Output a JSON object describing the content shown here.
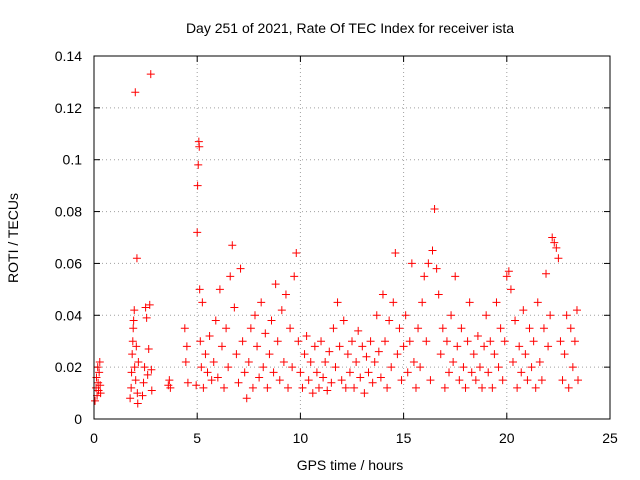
{
  "chart_data": {
    "type": "scatter",
    "title": "Day 251 of 2021, Rate Of TEC Index for receiver ista",
    "xlabel": "GPS time / hours",
    "ylabel": "ROTI / TECUs",
    "xlim": [
      0,
      25
    ],
    "ylim": [
      0,
      0.14
    ],
    "x_ticks": [
      0,
      5,
      10,
      15,
      20,
      25
    ],
    "x_tick_labels": [
      "0",
      "5",
      "10",
      "15",
      "20",
      "25"
    ],
    "y_ticks": [
      0,
      0.02,
      0.04,
      0.06,
      0.08,
      0.1,
      0.12,
      0.14
    ],
    "y_tick_labels": [
      "0",
      "0.02",
      "0.04",
      "0.06",
      "0.08",
      "0.1",
      "0.12",
      "0.14"
    ],
    "grid": true,
    "marker": "plus",
    "series": [
      {
        "name": "ROTI",
        "color": "#ff0000",
        "points": [
          [
            0.05,
            0.007
          ],
          [
            0.1,
            0.012
          ],
          [
            0.12,
            0.016
          ],
          [
            0.15,
            0.009
          ],
          [
            0.18,
            0.02
          ],
          [
            0.2,
            0.014
          ],
          [
            0.22,
            0.011
          ],
          [
            0.25,
            0.018
          ],
          [
            0.28,
            0.022
          ],
          [
            0.3,
            0.013
          ],
          [
            0.32,
            0.01
          ],
          [
            1.75,
            0.008
          ],
          [
            1.8,
            0.012
          ],
          [
            1.82,
            0.018
          ],
          [
            1.85,
            0.025
          ],
          [
            1.88,
            0.03
          ],
          [
            1.9,
            0.035
          ],
          [
            1.92,
            0.038
          ],
          [
            1.95,
            0.042
          ],
          [
            1.97,
            0.02
          ],
          [
            2.0,
            0.126
          ],
          [
            2.02,
            0.015
          ],
          [
            2.05,
            0.028
          ],
          [
            2.08,
            0.062
          ],
          [
            2.1,
            0.01
          ],
          [
            2.12,
            0.006
          ],
          [
            2.15,
            0.022
          ],
          [
            2.35,
            0.009
          ],
          [
            2.4,
            0.014
          ],
          [
            2.45,
            0.02
          ],
          [
            2.5,
            0.043
          ],
          [
            2.55,
            0.039
          ],
          [
            2.6,
            0.017
          ],
          [
            2.65,
            0.027
          ],
          [
            2.7,
            0.044
          ],
          [
            2.75,
            0.133
          ],
          [
            2.78,
            0.019
          ],
          [
            2.8,
            0.011
          ],
          [
            3.6,
            0.013
          ],
          [
            3.65,
            0.015
          ],
          [
            3.7,
            0.012
          ],
          [
            4.4,
            0.035
          ],
          [
            4.45,
            0.022
          ],
          [
            4.5,
            0.028
          ],
          [
            4.55,
            0.014
          ],
          [
            4.95,
            0.013
          ],
          [
            5.0,
            0.072
          ],
          [
            5.02,
            0.09
          ],
          [
            5.05,
            0.098
          ],
          [
            5.08,
            0.107
          ],
          [
            5.1,
            0.105
          ],
          [
            5.12,
            0.05
          ],
          [
            5.15,
            0.03
          ],
          [
            5.2,
            0.02
          ],
          [
            5.25,
            0.045
          ],
          [
            5.3,
            0.012
          ],
          [
            5.4,
            0.025
          ],
          [
            5.5,
            0.018
          ],
          [
            5.6,
            0.032
          ],
          [
            5.7,
            0.015
          ],
          [
            5.8,
            0.022
          ],
          [
            5.9,
            0.038
          ],
          [
            6.0,
            0.016
          ],
          [
            6.1,
            0.05
          ],
          [
            6.2,
            0.028
          ],
          [
            6.3,
            0.012
          ],
          [
            6.4,
            0.035
          ],
          [
            6.5,
            0.02
          ],
          [
            6.6,
            0.055
          ],
          [
            6.7,
            0.067
          ],
          [
            6.8,
            0.043
          ],
          [
            6.9,
            0.025
          ],
          [
            7.0,
            0.014
          ],
          [
            7.1,
            0.058
          ],
          [
            7.2,
            0.03
          ],
          [
            7.3,
            0.018
          ],
          [
            7.4,
            0.008
          ],
          [
            7.5,
            0.022
          ],
          [
            7.6,
            0.035
          ],
          [
            7.7,
            0.012
          ],
          [
            7.8,
            0.04
          ],
          [
            7.9,
            0.028
          ],
          [
            8.0,
            0.016
          ],
          [
            8.1,
            0.045
          ],
          [
            8.2,
            0.02
          ],
          [
            8.3,
            0.033
          ],
          [
            8.4,
            0.012
          ],
          [
            8.5,
            0.025
          ],
          [
            8.6,
            0.038
          ],
          [
            8.7,
            0.018
          ],
          [
            8.8,
            0.052
          ],
          [
            8.9,
            0.03
          ],
          [
            9.0,
            0.015
          ],
          [
            9.1,
            0.042
          ],
          [
            9.2,
            0.022
          ],
          [
            9.3,
            0.048
          ],
          [
            9.4,
            0.012
          ],
          [
            9.5,
            0.035
          ],
          [
            9.6,
            0.02
          ],
          [
            9.7,
            0.055
          ],
          [
            9.8,
            0.064
          ],
          [
            9.9,
            0.03
          ],
          [
            10.0,
            0.018
          ],
          [
            10.1,
            0.012
          ],
          [
            10.2,
            0.025
          ],
          [
            10.3,
            0.032
          ],
          [
            10.4,
            0.015
          ],
          [
            10.5,
            0.022
          ],
          [
            10.6,
            0.01
          ],
          [
            10.7,
            0.028
          ],
          [
            10.8,
            0.018
          ],
          [
            10.9,
            0.012
          ],
          [
            11.0,
            0.03
          ],
          [
            11.1,
            0.016
          ],
          [
            11.2,
            0.022
          ],
          [
            11.3,
            0.011
          ],
          [
            11.4,
            0.026
          ],
          [
            11.5,
            0.014
          ],
          [
            11.6,
            0.035
          ],
          [
            11.7,
            0.02
          ],
          [
            11.8,
            0.045
          ],
          [
            11.9,
            0.028
          ],
          [
            12.0,
            0.015
          ],
          [
            12.1,
            0.038
          ],
          [
            12.2,
            0.012
          ],
          [
            12.3,
            0.025
          ],
          [
            12.4,
            0.018
          ],
          [
            12.5,
            0.03
          ],
          [
            12.6,
            0.012
          ],
          [
            12.7,
            0.022
          ],
          [
            12.8,
            0.034
          ],
          [
            12.9,
            0.016
          ],
          [
            13.0,
            0.028
          ],
          [
            13.1,
            0.01
          ],
          [
            13.2,
            0.024
          ],
          [
            13.3,
            0.018
          ],
          [
            13.4,
            0.03
          ],
          [
            13.5,
            0.014
          ],
          [
            13.6,
            0.022
          ],
          [
            13.7,
            0.04
          ],
          [
            13.8,
            0.026
          ],
          [
            13.9,
            0.016
          ],
          [
            14.0,
            0.048
          ],
          [
            14.1,
            0.03
          ],
          [
            14.2,
            0.012
          ],
          [
            14.3,
            0.038
          ],
          [
            14.4,
            0.02
          ],
          [
            14.5,
            0.045
          ],
          [
            14.6,
            0.064
          ],
          [
            14.7,
            0.025
          ],
          [
            14.8,
            0.035
          ],
          [
            14.9,
            0.015
          ],
          [
            15.0,
            0.028
          ],
          [
            15.1,
            0.04
          ],
          [
            15.2,
            0.018
          ],
          [
            15.3,
            0.03
          ],
          [
            15.4,
            0.06
          ],
          [
            15.5,
            0.022
          ],
          [
            15.6,
            0.012
          ],
          [
            15.7,
            0.035
          ],
          [
            15.8,
            0.02
          ],
          [
            15.9,
            0.045
          ],
          [
            16.0,
            0.055
          ],
          [
            16.1,
            0.03
          ],
          [
            16.2,
            0.06
          ],
          [
            16.3,
            0.015
          ],
          [
            16.4,
            0.065
          ],
          [
            16.5,
            0.081
          ],
          [
            16.6,
            0.058
          ],
          [
            16.7,
            0.048
          ],
          [
            16.8,
            0.025
          ],
          [
            16.9,
            0.035
          ],
          [
            17.0,
            0.012
          ],
          [
            17.1,
            0.03
          ],
          [
            17.2,
            0.018
          ],
          [
            17.3,
            0.04
          ],
          [
            17.4,
            0.022
          ],
          [
            17.5,
            0.055
          ],
          [
            17.6,
            0.028
          ],
          [
            17.7,
            0.015
          ],
          [
            17.8,
            0.035
          ],
          [
            17.9,
            0.02
          ],
          [
            18.0,
            0.012
          ],
          [
            18.1,
            0.03
          ],
          [
            18.2,
            0.045
          ],
          [
            18.3,
            0.018
          ],
          [
            18.4,
            0.025
          ],
          [
            18.5,
            0.015
          ],
          [
            18.6,
            0.032
          ],
          [
            18.7,
            0.02
          ],
          [
            18.8,
            0.012
          ],
          [
            18.9,
            0.028
          ],
          [
            19.0,
            0.04
          ],
          [
            19.1,
            0.018
          ],
          [
            19.2,
            0.03
          ],
          [
            19.3,
            0.012
          ],
          [
            19.4,
            0.025
          ],
          [
            19.5,
            0.045
          ],
          [
            19.6,
            0.02
          ],
          [
            19.7,
            0.035
          ],
          [
            19.8,
            0.015
          ],
          [
            19.9,
            0.03
          ],
          [
            20.0,
            0.055
          ],
          [
            20.1,
            0.057
          ],
          [
            20.2,
            0.05
          ],
          [
            20.3,
            0.022
          ],
          [
            20.4,
            0.038
          ],
          [
            20.5,
            0.012
          ],
          [
            20.6,
            0.028
          ],
          [
            20.7,
            0.018
          ],
          [
            20.8,
            0.042
          ],
          [
            20.9,
            0.025
          ],
          [
            21.0,
            0.015
          ],
          [
            21.1,
            0.035
          ],
          [
            21.2,
            0.02
          ],
          [
            21.3,
            0.03
          ],
          [
            21.4,
            0.012
          ],
          [
            21.5,
            0.045
          ],
          [
            21.6,
            0.022
          ],
          [
            21.7,
            0.015
          ],
          [
            21.8,
            0.035
          ],
          [
            21.9,
            0.056
          ],
          [
            22.0,
            0.028
          ],
          [
            22.1,
            0.04
          ],
          [
            22.2,
            0.07
          ],
          [
            22.3,
            0.068
          ],
          [
            22.4,
            0.066
          ],
          [
            22.5,
            0.062
          ],
          [
            22.6,
            0.03
          ],
          [
            22.7,
            0.015
          ],
          [
            22.8,
            0.025
          ],
          [
            22.9,
            0.04
          ],
          [
            23.0,
            0.012
          ],
          [
            23.1,
            0.035
          ],
          [
            23.2,
            0.02
          ],
          [
            23.3,
            0.03
          ],
          [
            23.4,
            0.042
          ],
          [
            23.45,
            0.015
          ]
        ]
      }
    ]
  }
}
